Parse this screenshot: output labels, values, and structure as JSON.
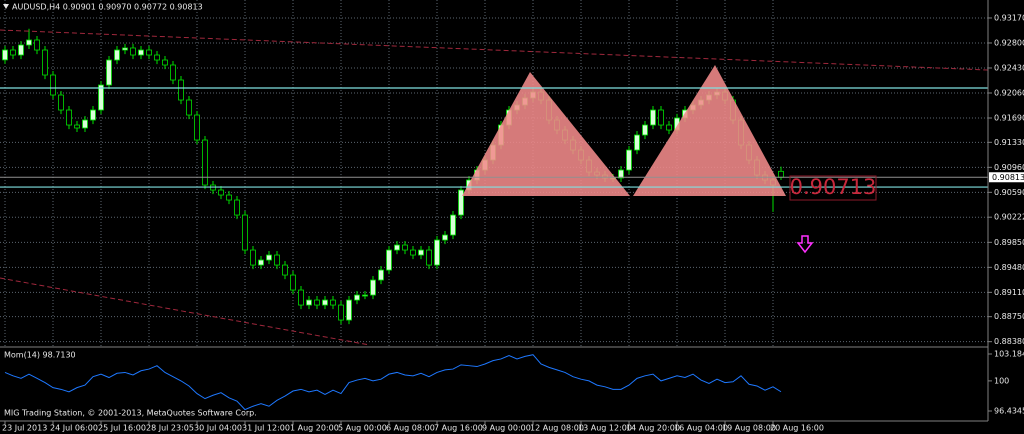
{
  "chart_data": [
    {
      "type": "candlestick",
      "header": "AUDUSD,H4  0.90901 0.90970 0.90772 0.90813",
      "categories": [
        "23 Jul 2013",
        null,
        null,
        null,
        null,
        null,
        "24 Jul 06:00",
        null,
        null,
        null,
        null,
        null,
        "25 Jul 16:00",
        null,
        null,
        null,
        null,
        null,
        "28 Jul 23:05",
        null,
        null,
        null,
        null,
        null,
        "30 Jul 04:00",
        null,
        null,
        null,
        null,
        null,
        "31 Jul 12:00",
        null,
        null,
        null,
        null,
        null,
        "1 Aug 20:00",
        null,
        null,
        null,
        null,
        null,
        "5 Aug 00:00",
        null,
        null,
        null,
        null,
        null,
        "6 Aug 08:00",
        null,
        null,
        null,
        null,
        null,
        "7 Aug 16:00",
        null,
        null,
        null,
        null,
        null,
        "9 Aug 00:00",
        null,
        null,
        null,
        null,
        null,
        "12 Aug 08:00",
        null,
        null,
        null,
        null,
        null,
        "13 Aug 12:00",
        null,
        null,
        null,
        null,
        null,
        "14 Aug 20:00",
        null,
        null,
        null,
        null,
        null,
        "16 Aug 04:00",
        null,
        null,
        null,
        null,
        null,
        "19 Aug 08:00",
        null,
        null,
        null,
        null,
        null,
        "20 Aug 16:00",
        null
      ],
      "open": [
        0.9255,
        0.92696,
        0.92622,
        0.9277,
        0.92844,
        0.92696,
        0.92326,
        0.9203,
        0.91808,
        0.91586,
        0.91542,
        0.9166,
        0.91808,
        0.92178,
        0.92548,
        0.92696,
        0.92726,
        0.92622,
        0.92696,
        0.92622,
        0.92548,
        0.92474,
        0.92252,
        0.91956,
        0.91734,
        0.91364,
        0.90698,
        0.90624,
        0.9055,
        0.90476,
        0.90254,
        0.89736,
        0.89514,
        0.89588,
        0.89662,
        0.89514,
        0.89366,
        0.89144,
        0.88922,
        0.88996,
        0.88922,
        0.88996,
        0.88922,
        0.887,
        0.88996,
        0.8907,
        0.8907,
        0.89292,
        0.8944,
        0.89736,
        0.8981,
        0.89736,
        0.89662,
        0.89736,
        0.89514,
        0.89884,
        0.89958,
        0.90254,
        0.90624,
        0.90772,
        0.9092,
        0.91068,
        0.9129,
        0.91586,
        0.91808,
        0.91882,
        0.91986,
        0.92074,
        0.91956,
        0.9166,
        0.91512,
        0.91364,
        0.91216,
        0.91068,
        0.9089,
        0.90846,
        0.90802,
        0.90802,
        0.9092,
        0.91216,
        0.91438,
        0.91586,
        0.91808,
        0.91586,
        0.91512,
        0.9169,
        0.91808,
        0.91882,
        0.91956,
        0.9203,
        0.92074,
        0.91956,
        0.9166,
        0.9129,
        0.91068,
        0.90846,
        0.90772,
        0.90901
      ],
      "high": [
        0.92756,
        0.92756,
        0.9283,
        0.9301,
        0.92904,
        0.92756,
        0.92386,
        0.9209,
        0.91868,
        0.91646,
        0.9172,
        0.91868,
        0.92238,
        0.92608,
        0.92756,
        0.92786,
        0.92786,
        0.92756,
        0.92756,
        0.92682,
        0.92608,
        0.92534,
        0.92312,
        0.92016,
        0.91794,
        0.91424,
        0.90758,
        0.90684,
        0.9061,
        0.90536,
        0.90314,
        0.89796,
        0.89648,
        0.89722,
        0.89722,
        0.89574,
        0.89426,
        0.89204,
        0.89056,
        0.89056,
        0.89056,
        0.89056,
        0.88982,
        0.89056,
        0.8913,
        0.8913,
        0.89352,
        0.895,
        0.89796,
        0.8987,
        0.8987,
        0.89796,
        0.89796,
        0.89796,
        0.89944,
        0.90018,
        0.90314,
        0.90684,
        0.90832,
        0.9098,
        0.91128,
        0.9135,
        0.91646,
        0.91868,
        0.91942,
        0.92046,
        0.92134,
        0.92134,
        0.92016,
        0.9172,
        0.91572,
        0.91424,
        0.91276,
        0.91128,
        0.9095,
        0.90906,
        0.90862,
        0.9098,
        0.91276,
        0.91498,
        0.91646,
        0.91868,
        0.91868,
        0.91646,
        0.9175,
        0.91868,
        0.91942,
        0.92016,
        0.9209,
        0.92134,
        0.92134,
        0.92016,
        0.9172,
        0.9135,
        0.91128,
        0.90906,
        0.90832,
        0.9097
      ],
      "low": [
        0.9249,
        0.92562,
        0.92562,
        0.9271,
        0.92636,
        0.92266,
        0.9197,
        0.91748,
        0.91526,
        0.91482,
        0.91482,
        0.916,
        0.91748,
        0.92118,
        0.92488,
        0.92636,
        0.92562,
        0.92562,
        0.92562,
        0.92488,
        0.92414,
        0.92192,
        0.91896,
        0.91674,
        0.91304,
        0.90638,
        0.90564,
        0.9049,
        0.90416,
        0.90194,
        0.89676,
        0.89454,
        0.89454,
        0.89528,
        0.89454,
        0.89306,
        0.89084,
        0.88862,
        0.88862,
        0.88862,
        0.88862,
        0.88862,
        0.8864,
        0.8864,
        0.88936,
        0.8901,
        0.8901,
        0.89232,
        0.8938,
        0.89676,
        0.89676,
        0.89602,
        0.89602,
        0.89454,
        0.89454,
        0.89824,
        0.89898,
        0.90194,
        0.90564,
        0.90712,
        0.9086,
        0.91008,
        0.9123,
        0.91526,
        0.91748,
        0.91822,
        0.91926,
        0.91896,
        0.916,
        0.91452,
        0.91304,
        0.91156,
        0.91008,
        0.9083,
        0.90786,
        0.90742,
        0.90742,
        0.90742,
        0.9086,
        0.91156,
        0.91378,
        0.91526,
        0.91526,
        0.91452,
        0.91452,
        0.9163,
        0.91748,
        0.91822,
        0.91896,
        0.9197,
        0.91896,
        0.916,
        0.9123,
        0.91008,
        0.90786,
        0.90712,
        0.903,
        0.90772
      ],
      "close": [
        0.92696,
        0.92622,
        0.9277,
        0.92844,
        0.92696,
        0.92326,
        0.9203,
        0.91808,
        0.91586,
        0.91542,
        0.9166,
        0.91808,
        0.92178,
        0.92548,
        0.92696,
        0.92726,
        0.92622,
        0.92696,
        0.92622,
        0.92548,
        0.92474,
        0.92252,
        0.91956,
        0.91734,
        0.91364,
        0.90698,
        0.90624,
        0.9055,
        0.90476,
        0.90254,
        0.89736,
        0.89514,
        0.89588,
        0.89662,
        0.89514,
        0.89366,
        0.89144,
        0.88922,
        0.88996,
        0.88922,
        0.88996,
        0.88922,
        0.887,
        0.88996,
        0.8907,
        0.8907,
        0.89292,
        0.8944,
        0.89736,
        0.8981,
        0.89736,
        0.89662,
        0.89736,
        0.89514,
        0.89884,
        0.89958,
        0.90254,
        0.90624,
        0.90772,
        0.9092,
        0.91068,
        0.9129,
        0.91586,
        0.91808,
        0.91882,
        0.91986,
        0.92074,
        0.91956,
        0.9166,
        0.91512,
        0.91364,
        0.91216,
        0.91068,
        0.9089,
        0.90846,
        0.90802,
        0.90802,
        0.9092,
        0.91216,
        0.91438,
        0.91586,
        0.91808,
        0.91586,
        0.91512,
        0.9169,
        0.91808,
        0.91882,
        0.91956,
        0.9203,
        0.92074,
        0.91956,
        0.9166,
        0.9129,
        0.91068,
        0.90846,
        0.90772,
        0.90698,
        0.90813
      ],
      "up_color": "#d8ffd8",
      "down_color": "#000000",
      "wick_color": "#00e000",
      "ylim": [
        0.88316,
        0.93436
      ],
      "yticks": [
        {
          "value": 0.9317,
          "label": "0.93170"
        },
        {
          "value": 0.928,
          "label": "0.92800"
        },
        {
          "value": 0.9243,
          "label": "0.92430"
        },
        {
          "value": 0.9206,
          "label": "0.92060"
        },
        {
          "value": 0.9169,
          "label": "0.91690"
        },
        {
          "value": 0.9133,
          "label": "0.91330"
        },
        {
          "value": 0.9096,
          "label": "0.90960"
        },
        {
          "value": 0.9059,
          "label": "0.90590"
        },
        0.90222,
        {
          "value": 0.8985,
          "label": "0.89850"
        },
        {
          "value": 0.8948,
          "label": "0.89480"
        },
        {
          "value": 0.8911,
          "label": "0.89110"
        },
        {
          "value": 0.8875,
          "label": "0.88750"
        },
        {
          "value": 0.8838,
          "label": "0.88380"
        }
      ],
      "grid": true,
      "current_price": 0.90813,
      "horizontal_lines": [
        {
          "value": 0.92134,
          "color": "#7fe0e0"
        },
        {
          "value": 0.90668,
          "color": "#7fe0e0"
        }
      ],
      "trendlines": [
        {
          "values": [
            0.92992,
            0.924
          ],
          "color": "#a0283c"
        },
        {
          "values": [
            0.89322,
            0.8833
          ],
          "color": "#a0283c"
        }
      ],
      "annotation": "0.90713"
    },
    {
      "type": "line",
      "title": "Mom(14) 98.7130",
      "color": "#1e78ff",
      "values": [
        101.0,
        100.6,
        100.3,
        100.8,
        100.3,
        99.8,
        99.2,
        99.0,
        98.7,
        99.2,
        99.5,
        100.5,
        100.8,
        100.4,
        100.9,
        101.0,
        100.7,
        101.2,
        101.4,
        101.8,
        101.0,
        100.5,
        100.0,
        99.4,
        98.5,
        97.9,
        98.3,
        98.6,
        98.0,
        97.6,
        96.6,
        97.0,
        97.3,
        97.0,
        97.7,
        98.2,
        98.8,
        99.0,
        98.7,
        98.9,
        98.4,
        98.9,
        98.5,
        99.8,
        100.1,
        100.3,
        100.0,
        100.2,
        100.8,
        101.0,
        100.7,
        100.6,
        100.9,
        100.5,
        101.0,
        101.3,
        101.4,
        101.9,
        101.8,
        101.7,
        102.0,
        102.4,
        102.6,
        103.0,
        102.6,
        102.9,
        103.1,
        102.0,
        101.6,
        101.3,
        101.0,
        100.5,
        100.2,
        100.0,
        99.5,
        99.3,
        99.0,
        99.0,
        99.5,
        100.3,
        100.6,
        100.8,
        100.0,
        100.3,
        100.6,
        100.4,
        100.8,
        100.1,
        99.7,
        100.2,
        99.8,
        99.9,
        100.6,
        99.6,
        99.4,
        98.9,
        99.3,
        98.713
      ],
      "ylim": [
        95.368,
        103.777
      ],
      "yticks": [
        103.1848,
        100,
        96.4345
      ]
    }
  ],
  "footer": "MIG Trading Station, © 2001-2013, MetaQuotes Software Corp."
}
